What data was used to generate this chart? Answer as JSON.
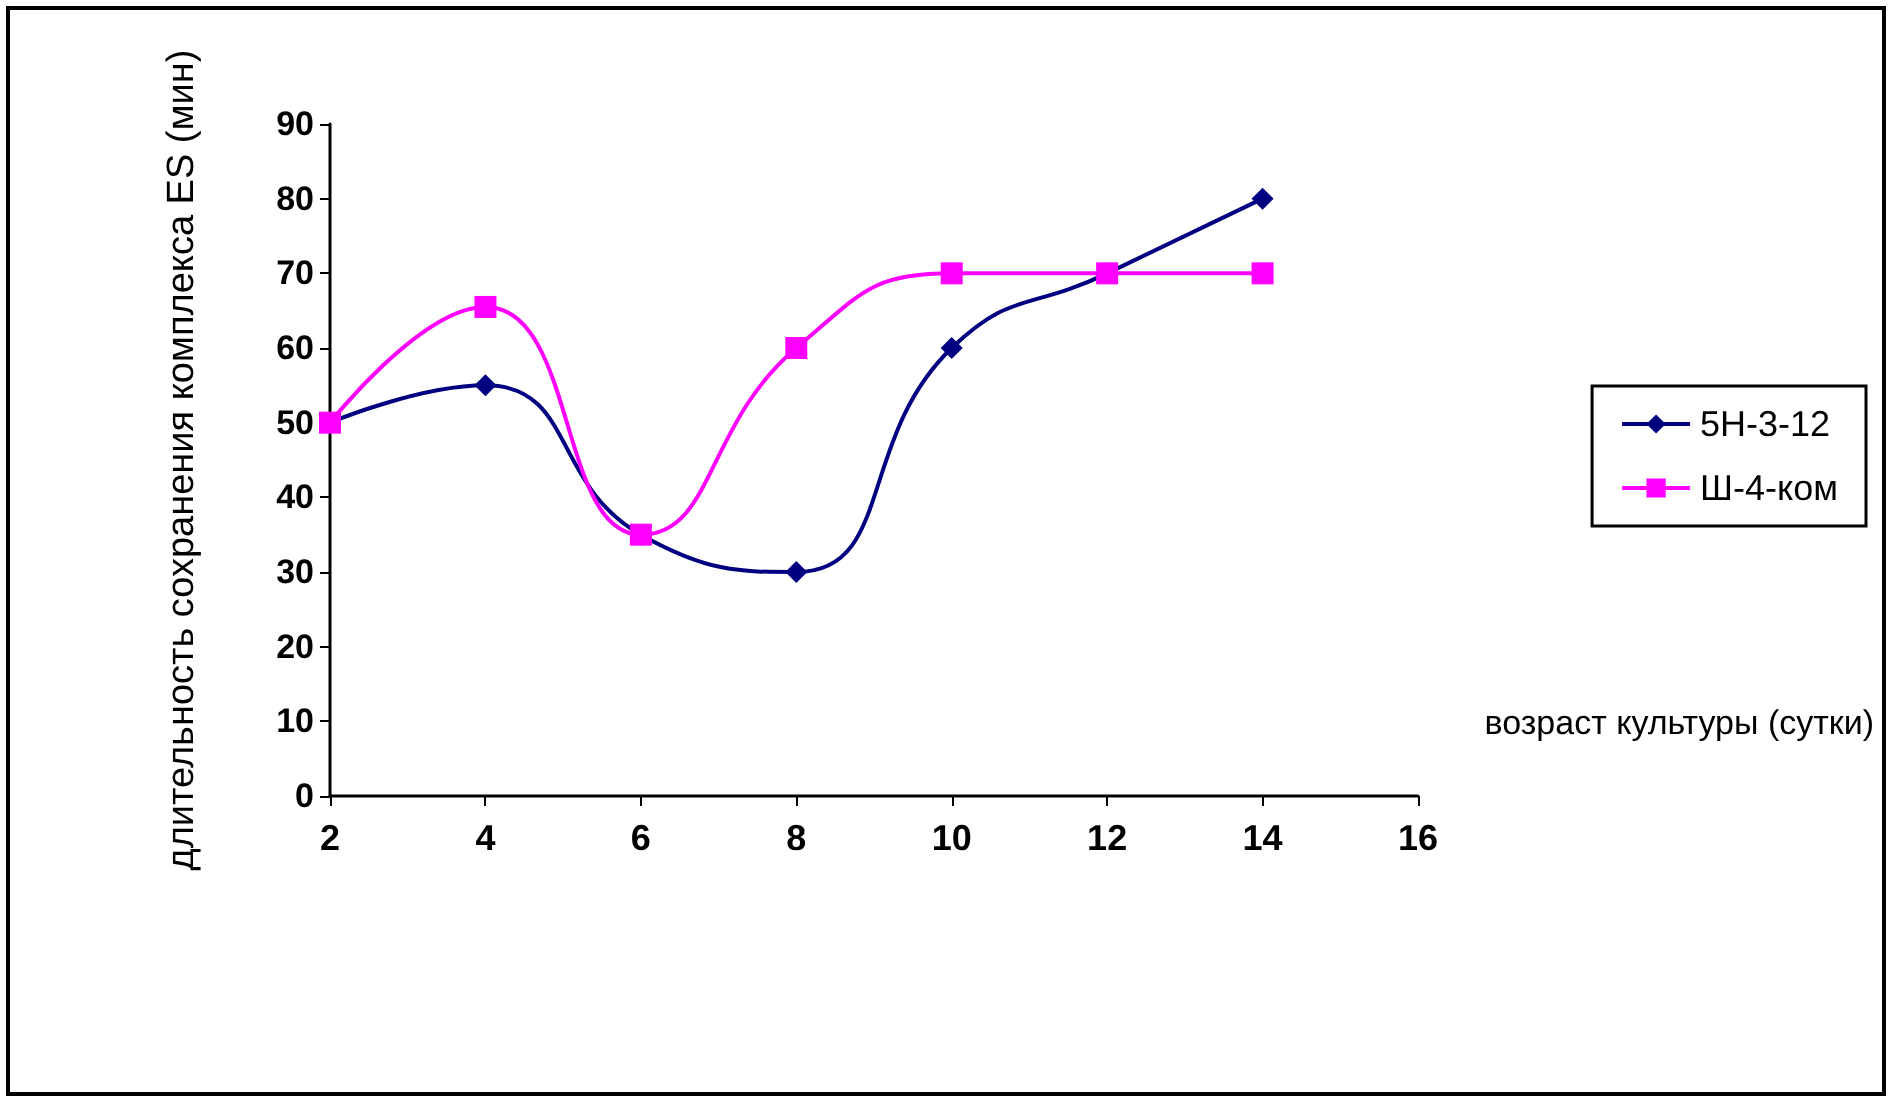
{
  "chart_data": {
    "type": "line",
    "xlabel": "возраст культуры (сутки)",
    "ylabel": "длительность сохранения комплекса ES (мин)",
    "x": [
      2,
      4,
      6,
      8,
      10,
      12,
      14
    ],
    "series": [
      {
        "name": "5H-3-12",
        "color": "#000080",
        "marker": "diamond",
        "values": [
          50,
          55,
          35,
          30,
          60,
          70,
          80
        ]
      },
      {
        "name": "Ш-4-ком",
        "color": "#ff00ff",
        "marker": "square",
        "values": [
          50,
          65.5,
          35,
          60,
          70,
          70,
          70
        ]
      }
    ],
    "xlim": [
      2,
      16
    ],
    "xticks": [
      2,
      4,
      6,
      8,
      10,
      12,
      14,
      16
    ],
    "ylim": [
      0,
      90
    ],
    "yticks": [
      0,
      10,
      20,
      30,
      40,
      50,
      60,
      70,
      80,
      90
    ],
    "grid": false,
    "legend": "right",
    "line_style": "solid"
  }
}
